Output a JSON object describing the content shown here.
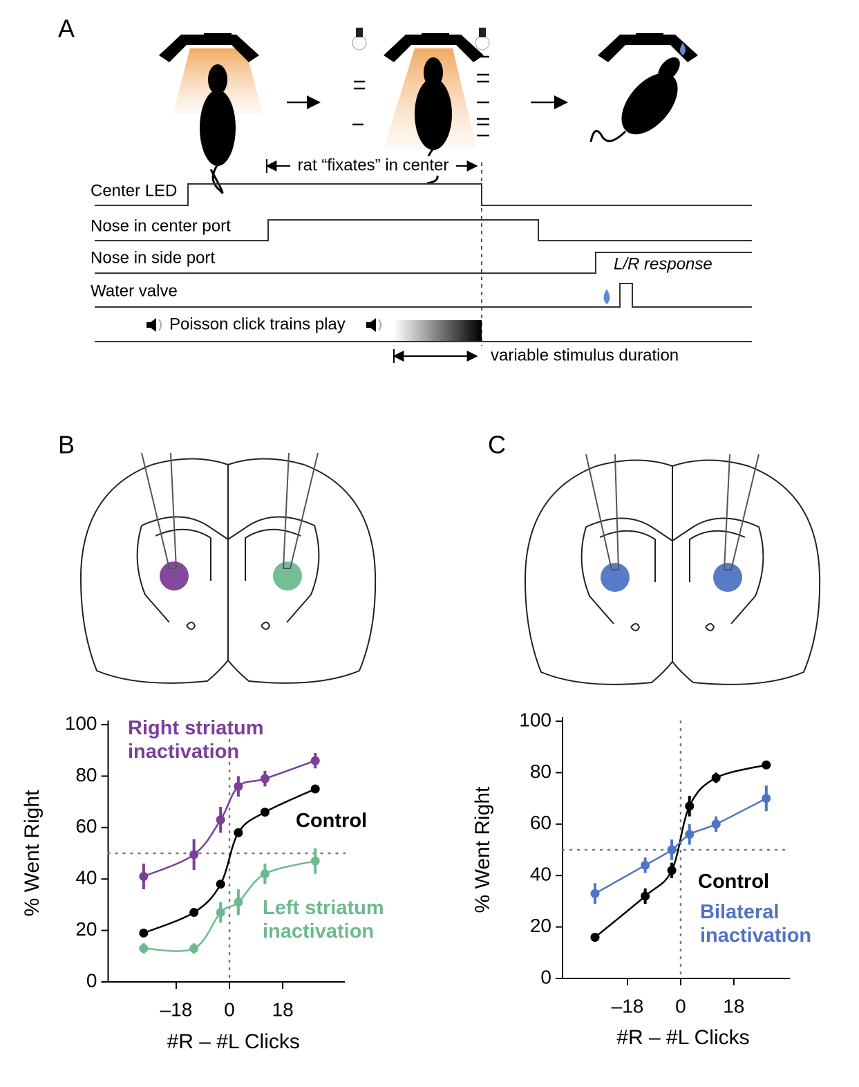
{
  "panel_a": {
    "label": "A",
    "fixate": "rat “fixates” in center",
    "rows": [
      "Center LED",
      "Nose in center port",
      "Nose in side port",
      "Water valve",
      "Poisson click trains play"
    ],
    "response": "L/R response",
    "duration": "variable stimulus duration"
  },
  "panel_b_label": "B",
  "panel_c_label": "C",
  "chart_data": [
    {
      "type": "scatter",
      "xlabel": "#R – #L Clicks",
      "ylabel": "% Went Right",
      "xlim": [
        -41,
        39
      ],
      "ylim": [
        0,
        100
      ],
      "xticks": [
        {
          "value": -18,
          "label": "–18"
        },
        0,
        18
      ],
      "yticks": [
        0,
        20,
        40,
        60,
        80,
        100
      ],
      "reference_lines": {
        "x": 0,
        "y": 50
      },
      "series": [
        {
          "name": "Right striatum inactivation",
          "color": "#7b3f98",
          "x": [
            -29,
            -12,
            -3,
            3,
            12,
            29
          ],
          "values": [
            41,
            49.5,
            63,
            76,
            79,
            86
          ],
          "errors": [
            5,
            6,
            5,
            4,
            3,
            3
          ]
        },
        {
          "name": "Control",
          "color": "#000000",
          "x": [
            -29,
            -12,
            -3,
            3,
            12,
            29
          ],
          "values": [
            19,
            27,
            38,
            58,
            66,
            75
          ],
          "errors": [
            1,
            1,
            1,
            1,
            1,
            1
          ]
        },
        {
          "name": "Left striatum inactivation",
          "color": "#6dba8f",
          "x": [
            -29,
            -12,
            -3,
            3,
            12,
            29
          ],
          "values": [
            13,
            13,
            27,
            31,
            42,
            47
          ],
          "errors": [
            2,
            2,
            4,
            5,
            4,
            5
          ]
        }
      ]
    },
    {
      "type": "scatter",
      "xlabel": "#R – #L Clicks",
      "ylabel": "% Went Right",
      "xlim": [
        -40,
        37
      ],
      "ylim": [
        0,
        100
      ],
      "xticks": [
        {
          "value": -18,
          "label": "–18"
        },
        0,
        18
      ],
      "yticks": [
        0,
        20,
        40,
        60,
        80,
        100
      ],
      "reference_lines": {
        "x": 0,
        "y": 50
      },
      "series": [
        {
          "name": "Control",
          "color": "#000000",
          "x": [
            -29,
            -12,
            -3,
            3,
            12,
            29
          ],
          "values": [
            16,
            32,
            42,
            67,
            78,
            83
          ],
          "errors": [
            1,
            3,
            3,
            4,
            2,
            1
          ]
        },
        {
          "name": "Bilateral inactivation",
          "color": "#4f74c4",
          "x": [
            -29,
            -12,
            -3,
            3,
            12,
            29
          ],
          "values": [
            33,
            44,
            50,
            56,
            60,
            70
          ],
          "errors": [
            4,
            3,
            4,
            4,
            3,
            5
          ]
        }
      ]
    }
  ]
}
